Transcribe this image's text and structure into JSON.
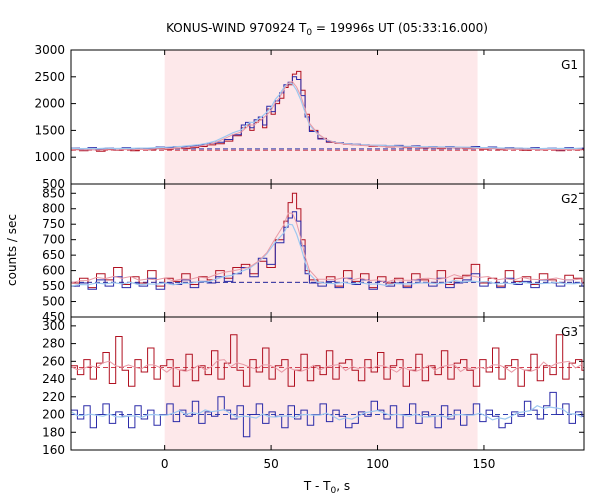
{
  "chart_data": {
    "type": "line",
    "title_prefix": "KONUS-WIND 970924 T",
    "title_sub": "0",
    "title_suffix": " = 19996s UT (05:33:16.000)",
    "xlabel_prefix": "T - T",
    "xlabel_sub": "0",
    "xlabel_suffix": ", s",
    "ylabel": "counts / sec",
    "xlim": [
      -44,
      197
    ],
    "xticks": [
      0,
      50,
      100,
      150
    ],
    "shaded_interval": [
      0,
      147
    ],
    "colors": {
      "shade": "#fde8ea",
      "red": "#b01020",
      "blue": "#2a2aa8",
      "fit_light_blue": "#9ec8f0",
      "fit_pink": "#e89aa6",
      "bg_red": "#d04050",
      "bg_blue": "#3040b0"
    },
    "panels": [
      {
        "label": "G1",
        "ylim": [
          500,
          3000
        ],
        "yticks": [
          500,
          1000,
          1500,
          2000,
          2500,
          3000
        ],
        "background_red": 1130,
        "background_blue": 1155,
        "series": [
          {
            "color": "red",
            "x": [
              -44,
              -40,
              -36,
              -32,
              -28,
              -24,
              -20,
              -16,
              -12,
              -8,
              -4,
              0,
              4,
              8,
              12,
              16,
              20,
              24,
              28,
              32,
              36,
              38,
              40,
              42,
              44,
              46,
              48,
              50,
              52,
              54,
              56,
              58,
              60,
              62,
              64,
              66,
              68,
              72,
              76,
              80,
              84,
              88,
              92,
              96,
              100,
              104,
              108,
              112,
              116,
              120,
              124,
              128,
              132,
              136,
              140,
              144,
              148,
              152,
              156,
              160,
              164,
              168,
              172,
              176,
              180,
              184,
              188,
              192,
              196
            ],
            "y": [
              1150,
              1120,
              1160,
              1110,
              1150,
              1130,
              1160,
              1120,
              1150,
              1140,
              1160,
              1150,
              1170,
              1160,
              1180,
              1200,
              1230,
              1250,
              1300,
              1400,
              1550,
              1600,
              1500,
              1650,
              1700,
              1550,
              1900,
              1800,
              2000,
              2100,
              2300,
              2350,
              2550,
              2600,
              2250,
              1800,
              1500,
              1350,
              1280,
              1260,
              1240,
              1230,
              1220,
              1200,
              1210,
              1190,
              1200,
              1180,
              1190,
              1170,
              1180,
              1160,
              1190,
              1170,
              1160,
              1180,
              1150,
              1170,
              1140,
              1160,
              1150,
              1130,
              1160,
              1140,
              1150,
              1120,
              1160,
              1140,
              1150
            ]
          },
          {
            "color": "blue",
            "x": [
              -44,
              -40,
              -36,
              -32,
              -28,
              -24,
              -20,
              -16,
              -12,
              -8,
              -4,
              0,
              4,
              8,
              12,
              16,
              20,
              24,
              28,
              32,
              36,
              38,
              40,
              42,
              44,
              46,
              48,
              50,
              52,
              54,
              56,
              58,
              60,
              62,
              64,
              66,
              68,
              72,
              76,
              80,
              84,
              88,
              92,
              96,
              100,
              104,
              108,
              112,
              116,
              120,
              124,
              128,
              132,
              136,
              140,
              144,
              148,
              152,
              156,
              160,
              164,
              168,
              172,
              176,
              180,
              184,
              188,
              192,
              196
            ],
            "y": [
              1170,
              1140,
              1180,
              1150,
              1170,
              1160,
              1180,
              1150,
              1170,
              1160,
              1190,
              1180,
              1200,
              1190,
              1210,
              1230,
              1260,
              1280,
              1330,
              1420,
              1600,
              1650,
              1550,
              1700,
              1750,
              1600,
              1950,
              1850,
              2050,
              2200,
              2350,
              2400,
              2500,
              2450,
              2150,
              1750,
              1480,
              1340,
              1290,
              1270,
              1250,
              1240,
              1230,
              1220,
              1220,
              1210,
              1220,
              1200,
              1210,
              1190,
              1200,
              1180,
              1200,
              1190,
              1180,
              1200,
              1170,
              1190,
              1160,
              1180,
              1170,
              1150,
              1180,
              1160,
              1170,
              1140,
              1180,
              1160,
              1170
            ]
          }
        ]
      },
      {
        "label": "G2",
        "ylim": [
          450,
          880
        ],
        "yticks": [
          450,
          500,
          550,
          600,
          650,
          700,
          750,
          800,
          850
        ],
        "background_red": 562,
        "background_blue": 562,
        "series": [
          {
            "color": "red",
            "x": [
              -44,
              -40,
              -36,
              -32,
              -28,
              -24,
              -20,
              -16,
              -12,
              -8,
              -4,
              0,
              4,
              8,
              12,
              16,
              20,
              24,
              28,
              32,
              36,
              40,
              44,
              48,
              52,
              56,
              58,
              60,
              62,
              64,
              66,
              68,
              72,
              76,
              80,
              84,
              88,
              92,
              96,
              100,
              104,
              108,
              112,
              116,
              120,
              124,
              128,
              132,
              136,
              140,
              144,
              148,
              152,
              156,
              160,
              164,
              168,
              172,
              176,
              180,
              184,
              188,
              192,
              196
            ],
            "y": [
              560,
              575,
              545,
              590,
              570,
              610,
              555,
              580,
              560,
              600,
              550,
              575,
              565,
              590,
              555,
              580,
              570,
              600,
              575,
              610,
              620,
              590,
              630,
              610,
              700,
              760,
              820,
              850,
              800,
              700,
              600,
              570,
              560,
              580,
              550,
              600,
              565,
              590,
              545,
              580,
              560,
              575,
              550,
              590,
              570,
              560,
              600,
              555,
              575,
              585,
              620,
              560,
              575,
              550,
              600,
              565,
              580,
              555,
              590,
              570,
              560,
              585,
              575,
              560
            ]
          },
          {
            "color": "blue",
            "x": [
              -44,
              -40,
              -36,
              -32,
              -28,
              -24,
              -20,
              -16,
              -12,
              -8,
              -4,
              0,
              4,
              8,
              12,
              16,
              20,
              24,
              28,
              32,
              36,
              40,
              44,
              48,
              52,
              56,
              58,
              60,
              62,
              64,
              66,
              68,
              72,
              76,
              80,
              84,
              88,
              92,
              96,
              100,
              104,
              108,
              112,
              116,
              120,
              124,
              128,
              132,
              136,
              140,
              144,
              148,
              152,
              156,
              160,
              164,
              168,
              172,
              176,
              180,
              184,
              188,
              192,
              196
            ],
            "y": [
              550,
              560,
              540,
              570,
              550,
              580,
              545,
              560,
              550,
              575,
              540,
              560,
              555,
              570,
              545,
              565,
              560,
              580,
              565,
              590,
              610,
              580,
              640,
              620,
              690,
              740,
              770,
              790,
              760,
              680,
              590,
              560,
              550,
              565,
              545,
              575,
              555,
              570,
              540,
              565,
              550,
              560,
              545,
              570,
              560,
              550,
              575,
              545,
              560,
              570,
              590,
              550,
              560,
              545,
              575,
              555,
              565,
              545,
              570,
              560,
              550,
              570,
              560,
              550
            ]
          }
        ]
      },
      {
        "label": "G3",
        "ylim": [
          160,
          310
        ],
        "yticks": [
          160,
          180,
          200,
          220,
          240,
          260,
          280,
          300
        ],
        "background_red": 253,
        "background_blue": 200,
        "series": [
          {
            "color": "red",
            "x": [
              -44,
              -41,
              -38,
              -35,
              -32,
              -29,
              -26,
              -23,
              -20,
              -17,
              -14,
              -11,
              -8,
              -5,
              -2,
              1,
              4,
              7,
              10,
              13,
              16,
              19,
              22,
              25,
              28,
              31,
              34,
              37,
              40,
              43,
              46,
              49,
              52,
              55,
              58,
              61,
              64,
              67,
              70,
              73,
              76,
              79,
              82,
              85,
              88,
              91,
              94,
              97,
              100,
              103,
              106,
              109,
              112,
              115,
              118,
              121,
              124,
              127,
              130,
              133,
              136,
              139,
              142,
              145,
              148,
              151,
              154,
              157,
              160,
              163,
              166,
              169,
              172,
              175,
              178,
              181,
              184,
              187,
              190,
              193,
              196
            ],
            "y": [
              255,
              245,
              262,
              240,
              258,
              270,
              235,
              288,
              250,
              232,
              262,
              248,
              275,
              240,
              255,
              262,
              232,
              250,
              268,
              238,
              255,
              245,
              272,
              240,
              258,
              290,
              250,
              232,
              262,
              248,
              275,
              240,
              255,
              262,
              232,
              250,
              268,
              238,
              255,
              245,
              272,
              240,
              258,
              262,
              250,
              238,
              262,
              248,
              270,
              240,
              255,
              262,
              232,
              250,
              268,
              238,
              255,
              245,
              272,
              240,
              258,
              262,
              250,
              232,
              262,
              248,
              275,
              240,
              255,
              262,
              232,
              250,
              268,
              238,
              255,
              245,
              290,
              240,
              258,
              262,
              250
            ]
          },
          {
            "color": "blue",
            "x": [
              -44,
              -41,
              -38,
              -35,
              -32,
              -29,
              -26,
              -23,
              -20,
              -17,
              -14,
              -11,
              -8,
              -5,
              -2,
              1,
              4,
              7,
              10,
              13,
              16,
              19,
              22,
              25,
              28,
              31,
              34,
              37,
              40,
              43,
              46,
              49,
              52,
              55,
              58,
              61,
              64,
              67,
              70,
              73,
              76,
              79,
              82,
              85,
              88,
              91,
              94,
              97,
              100,
              103,
              106,
              109,
              112,
              115,
              118,
              121,
              124,
              127,
              130,
              133,
              136,
              139,
              142,
              145,
              148,
              151,
              154,
              157,
              160,
              163,
              166,
              169,
              172,
              175,
              178,
              181,
              184,
              187,
              190,
              193,
              196
            ],
            "y": [
              205,
              195,
              210,
              185,
              200,
              212,
              190,
              203,
              198,
              185,
              210,
              195,
              205,
              188,
              200,
              212,
              192,
              205,
              198,
              215,
              190,
              203,
              198,
              220,
              205,
              195,
              210,
              175,
              200,
              212,
              190,
              203,
              198,
              185,
              210,
              195,
              205,
              188,
              200,
              212,
              192,
              205,
              198,
              185,
              190,
              203,
              198,
              215,
              205,
              195,
              210,
              185,
              200,
              212,
              190,
              203,
              198,
              185,
              210,
              195,
              205,
              188,
              200,
              212,
              192,
              205,
              198,
              185,
              190,
              203,
              198,
              215,
              205,
              195,
              210,
              225,
              200,
              212,
              190,
              203,
              198
            ]
          }
        ]
      }
    ]
  }
}
